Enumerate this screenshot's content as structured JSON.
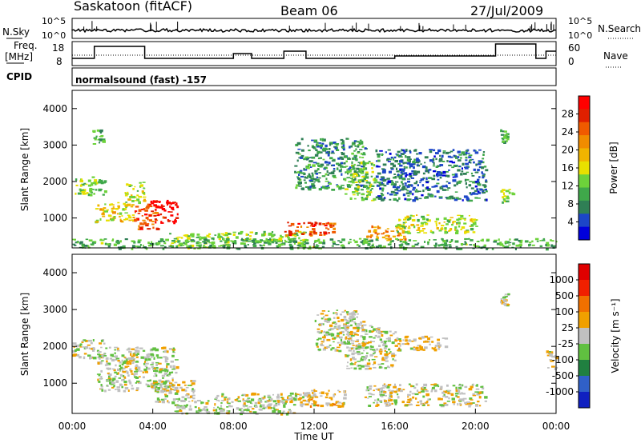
{
  "header": {
    "site": "Saskatoon (fitACF)",
    "beam": "Beam 06",
    "date": "27/Jul/2009"
  },
  "aux_panel": {
    "nsky_label": "N.Sky",
    "nsearch_label": "N.Search",
    "freq_label_1": "Freq.",
    "freq_label_2": "[MHz]",
    "nave_label": "Nave",
    "cpid_label": "CPID",
    "cpid_value": "normalsound (fast) -157",
    "nsky_ticks": [
      "10^5",
      "10^0"
    ],
    "nsearch_ticks": [
      "10^5",
      "10^0"
    ],
    "freq_ticks": [
      "18",
      "8"
    ],
    "nave_ticks": [
      "60",
      "0"
    ]
  },
  "power_panel": {
    "ylabel": "Slant Range [km]",
    "yticks": [
      "4000",
      "3000",
      "2000",
      "1000"
    ],
    "colorbar_label": "Power [dB]",
    "colorbar_ticks": [
      "28",
      "24",
      "20",
      "16",
      "12",
      "8",
      "4"
    ],
    "colors": [
      "#0000dc",
      "#1c46c8",
      "#2f7f55",
      "#3fa84a",
      "#6dd23a",
      "#e8e000",
      "#f0b400",
      "#f08c00",
      "#f05a00",
      "#e02000",
      "#ff0000"
    ]
  },
  "velocity_panel": {
    "ylabel": "Slant Range [km]",
    "yticks": [
      "4000",
      "3000",
      "2000",
      "1000"
    ],
    "colorbar_label": "Velocity [m s⁻¹]",
    "colorbar_ticks": [
      "1000",
      "500",
      "100",
      "25",
      "-25",
      "-100",
      "-500",
      "-1000"
    ],
    "colors": [
      "#1020c0",
      "#3060c8",
      "#208040",
      "#60c040",
      "#c0c0c0",
      "#f0a000",
      "#f07000",
      "#f02000",
      "#e00000"
    ]
  },
  "xaxis": {
    "label": "Time UT",
    "ticks": [
      "00:00",
      "04:00",
      "08:00",
      "12:00",
      "16:00",
      "20:00",
      "00:00"
    ]
  },
  "chart_data": [
    {
      "type": "heatmap",
      "title": "Power",
      "xlabel": "Time UT",
      "ylabel": "Slant Range [km]",
      "xlim": [
        0,
        24
      ],
      "ylim": [
        180,
        4500
      ],
      "zlabel": "Power [dB]",
      "zlim": [
        0,
        30
      ],
      "regions": [
        {
          "t": [
            0.0,
            1.6
          ],
          "r": [
            1650,
            2150
          ],
          "z": 12
        },
        {
          "t": [
            1.0,
            1.5
          ],
          "r": [
            3050,
            3450
          ],
          "z": 10
        },
        {
          "t": [
            1.1,
            3.0
          ],
          "r": [
            900,
            1450
          ],
          "z": 16
        },
        {
          "t": [
            2.6,
            3.6
          ],
          "r": [
            1400,
            2000
          ],
          "z": 14
        },
        {
          "t": [
            3.0,
            4.2
          ],
          "r": [
            700,
            1400
          ],
          "z": 24
        },
        {
          "t": [
            3.8,
            5.2
          ],
          "r": [
            850,
            1500
          ],
          "z": 28
        },
        {
          "t": [
            4.8,
            7.8
          ],
          "r": [
            200,
            600
          ],
          "z": 12
        },
        {
          "t": [
            7.2,
            11.5
          ],
          "r": [
            350,
            650
          ],
          "z": 12
        },
        {
          "t": [
            10.5,
            13.0
          ],
          "r": [
            550,
            900
          ],
          "z": 24
        },
        {
          "t": [
            11.0,
            14.5
          ],
          "r": [
            1800,
            3200
          ],
          "z": 8
        },
        {
          "t": [
            13.5,
            15.0
          ],
          "r": [
            1500,
            2600
          ],
          "z": 12
        },
        {
          "t": [
            14.5,
            16.5
          ],
          "r": [
            400,
            800
          ],
          "z": 20
        },
        {
          "t": [
            16.0,
            20.0
          ],
          "r": [
            600,
            1100
          ],
          "z": 14
        },
        {
          "t": [
            15.0,
            20.5
          ],
          "r": [
            1500,
            2900
          ],
          "z": 6
        },
        {
          "t": [
            21.2,
            21.6
          ],
          "r": [
            3100,
            3450
          ],
          "z": 10
        },
        {
          "t": [
            21.2,
            21.8
          ],
          "r": [
            1450,
            1800
          ],
          "z": 12
        },
        {
          "t": [
            0.0,
            24.0
          ],
          "r": [
            180,
            450
          ],
          "z": 10
        }
      ]
    },
    {
      "type": "heatmap",
      "title": "Velocity",
      "xlabel": "Time UT",
      "ylabel": "Slant Range [km]",
      "xlim": [
        0,
        24
      ],
      "ylim": [
        180,
        4500
      ],
      "zlabel": "Velocity [m s⁻¹]",
      "zlim": [
        -1000,
        1000
      ],
      "regions": [
        {
          "t": [
            0.0,
            1.6
          ],
          "r": [
            1700,
            2200
          ],
          "z": 0
        },
        {
          "t": [
            1.2,
            5.2
          ],
          "r": [
            800,
            2000
          ],
          "z": 60
        },
        {
          "t": [
            2.6,
            3.2
          ],
          "r": [
            1400,
            2000
          ],
          "z": -100
        },
        {
          "t": [
            4.0,
            6.0
          ],
          "r": [
            500,
            1100
          ],
          "z": 0
        },
        {
          "t": [
            5.0,
            11.0
          ],
          "r": [
            180,
            600
          ],
          "z": 60
        },
        {
          "t": [
            7.0,
            12.0
          ],
          "r": [
            500,
            750
          ],
          "z": 0
        },
        {
          "t": [
            11.0,
            13.5
          ],
          "r": [
            400,
            850
          ],
          "z": -100
        },
        {
          "t": [
            12.0,
            14.5
          ],
          "r": [
            1900,
            3000
          ],
          "z": 0
        },
        {
          "t": [
            13.5,
            16.0
          ],
          "r": [
            1400,
            2600
          ],
          "z": 0
        },
        {
          "t": [
            14.5,
            20.5
          ],
          "r": [
            400,
            1000
          ],
          "z": 0
        },
        {
          "t": [
            16.0,
            18.5
          ],
          "r": [
            1900,
            2300
          ],
          "z": -100
        },
        {
          "t": [
            21.2,
            21.6
          ],
          "r": [
            3100,
            3450
          ],
          "z": 0
        },
        {
          "t": [
            23.5,
            24.0
          ],
          "r": [
            1400,
            1900
          ],
          "z": -100
        }
      ]
    },
    {
      "type": "line",
      "title": "Freq.",
      "xlabel": "Time UT",
      "ylabel": "[MHz]",
      "ylim": [
        8,
        18
      ],
      "x": [
        0,
        1.1,
        1.1,
        3.6,
        3.6,
        8.0,
        8.0,
        8.9,
        8.9,
        10.5,
        10.5,
        11.6,
        11.6,
        16.0,
        16.0,
        21.0,
        21.0,
        23.0,
        23.0,
        23.5,
        23.5,
        24.0
      ],
      "y": [
        11,
        11,
        16,
        16,
        11,
        11,
        13,
        13,
        11,
        11,
        14,
        14,
        11,
        11,
        12,
        12,
        17,
        17,
        11,
        11,
        14,
        14
      ]
    }
  ]
}
